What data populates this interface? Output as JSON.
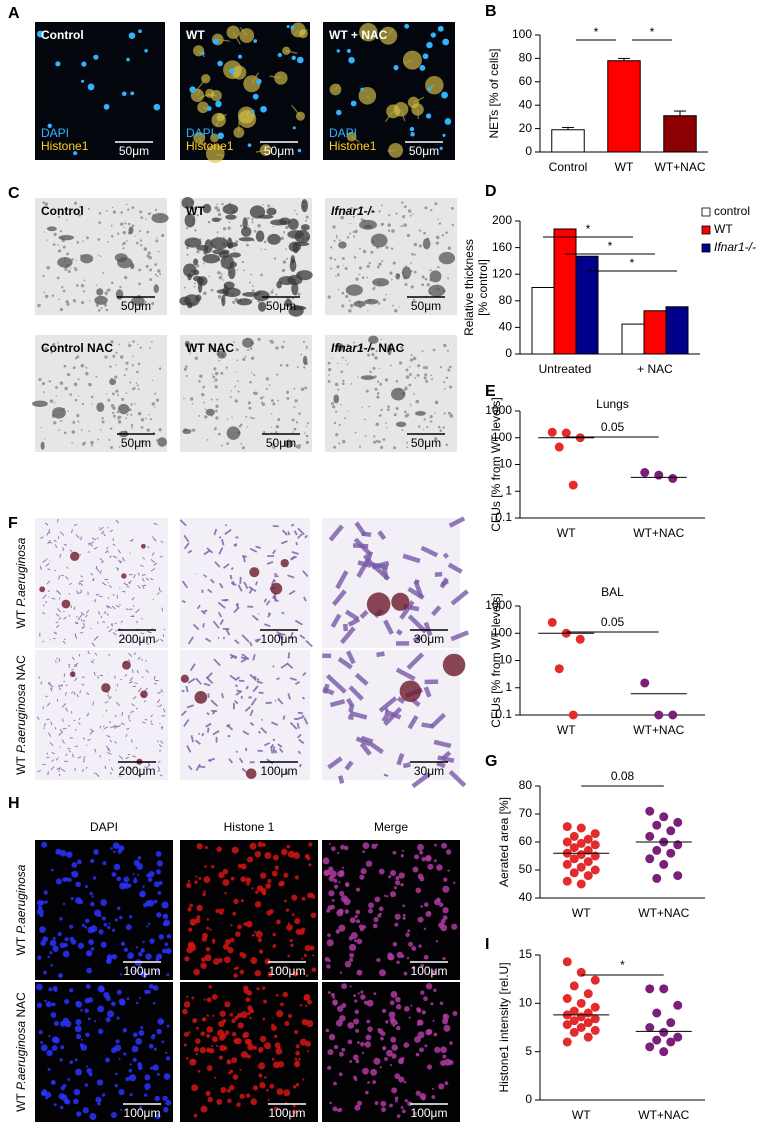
{
  "chart_data": [
    {
      "panel": "B",
      "type": "bar",
      "ylabel": "NETs [% of cells]",
      "categories": [
        "Control",
        "WT",
        "WT+NAC"
      ],
      "values": [
        19,
        78,
        31
      ],
      "errors": [
        2,
        2,
        4
      ],
      "colors": [
        "#ffffff",
        "#ff0000",
        "#8b0000"
      ],
      "ylim": [
        0,
        100
      ],
      "yticks": [
        0,
        20,
        40,
        60,
        80,
        100
      ],
      "comparisons": [
        {
          "between": [
            "Control",
            "WT"
          ],
          "label": "*"
        },
        {
          "between": [
            "WT",
            "WT+NAC"
          ],
          "label": "*"
        }
      ]
    },
    {
      "panel": "D",
      "type": "bar",
      "ylabel": [
        "Relative thickness",
        "[% control]"
      ],
      "categories": [
        "Untreated",
        "+ NAC"
      ],
      "series": [
        {
          "name": "control",
          "color": "#ffffff",
          "values": [
            100,
            45
          ]
        },
        {
          "name": "WT",
          "color": "#ff0000",
          "values": [
            188,
            65
          ]
        },
        {
          "name": "Ifnar1-/-",
          "italic": true,
          "color": "#00008b",
          "values": [
            147,
            71
          ]
        }
      ],
      "ylim": [
        0,
        200
      ],
      "yticks": [
        0,
        40,
        80,
        120,
        160,
        200
      ],
      "legend": "right",
      "comparisons": [
        {
          "series": "control",
          "label": "*"
        },
        {
          "series": "WT",
          "label": "*"
        },
        {
          "series": "Ifnar1-/-",
          "label": "*"
        }
      ]
    },
    {
      "panel": "E",
      "type": "dot",
      "title": "Lungs",
      "ylabel": "CFUs [% from WT levels]",
      "categories": [
        "WT",
        "WT+NAC"
      ],
      "colors": [
        "#e32b2b",
        "#7a1f7a"
      ],
      "points": [
        [
          160,
          150,
          100,
          45,
          1.7
        ],
        [
          5,
          4,
          3
        ]
      ],
      "means": [
        100,
        3.3
      ],
      "log_y": true,
      "ylim": [
        0.1,
        1000
      ],
      "yticks": [
        0.1,
        1,
        10,
        100,
        1000
      ],
      "annotation": "0.05"
    },
    {
      "type": "dot",
      "title": "BAL",
      "ylabel": "CFUs [% from WT levels]",
      "categories": [
        "WT",
        "WT+NAC"
      ],
      "colors": [
        "#e32b2b",
        "#7a1f7a"
      ],
      "points": [
        [
          250,
          100,
          60,
          5,
          0.1
        ],
        [
          1.5,
          0.1,
          0.1
        ]
      ],
      "means": [
        100,
        0.6
      ],
      "log_y": true,
      "ylim": [
        0.1,
        1000
      ],
      "yticks": [
        0.1,
        1,
        10,
        100,
        1000
      ],
      "annotation": "0.05"
    },
    {
      "panel": "G",
      "type": "dot",
      "ylabel": "Aerated area [%]",
      "categories": [
        "WT",
        "WT+NAC"
      ],
      "colors": [
        "#e32b2b",
        "#7a1f7a"
      ],
      "points": [
        [
          65.5,
          65,
          63,
          62,
          61,
          60,
          59.5,
          59,
          58,
          57,
          56,
          55.5,
          55,
          54,
          53,
          52,
          51,
          50,
          49,
          48,
          46,
          45
        ],
        [
          71,
          69,
          67,
          66,
          64,
          62,
          60,
          59,
          57,
          56,
          54,
          52,
          48,
          47
        ]
      ],
      "means": [
        56,
        60
      ],
      "ylim": [
        40,
        80
      ],
      "yticks": [
        40,
        50,
        60,
        70,
        80
      ],
      "annotation": "0.08"
    },
    {
      "panel": "I",
      "type": "dot",
      "ylabel": "Histone1 intensity [rel.U]",
      "categories": [
        "WT",
        "WT+NAC"
      ],
      "colors": [
        "#e32b2b",
        "#7a1f7a"
      ],
      "points": [
        [
          14.3,
          13.2,
          12.4,
          11.8,
          11,
          10.5,
          10,
          9.6,
          9.2,
          9,
          8.8,
          8.6,
          8.4,
          8.2,
          8,
          7.8,
          7.5,
          7.2,
          7,
          6.5,
          6
        ],
        [
          11.5,
          11.5,
          9.8,
          9,
          8,
          7.5,
          7,
          6.5,
          6.2,
          6,
          5.5,
          5
        ]
      ],
      "means": [
        8.8,
        7.1
      ],
      "ylim": [
        0,
        15
      ],
      "yticks": [
        0,
        5,
        10,
        15
      ],
      "annotation": "*"
    }
  ],
  "image_panels": [
    {
      "panel": "A",
      "images": [
        {
          "label": "Control",
          "stains": [
            "DAPI",
            "Histone1"
          ],
          "scale": "50μm"
        },
        {
          "label": "WT",
          "stains": [
            "DAPI",
            "Histone1"
          ],
          "scale": "50μm"
        },
        {
          "label": "WT + NAC",
          "stains": [
            "DAPI",
            "Histone1"
          ],
          "scale": "50μm"
        }
      ]
    },
    {
      "panel": "C",
      "images": [
        {
          "label": "Control",
          "scale": "50μm"
        },
        {
          "label": "WT",
          "scale": "50μm"
        },
        {
          "label": [
            {
              "text": "Ifnar1-/-",
              "italic": true
            }
          ],
          "scale": "50μm"
        },
        {
          "label": "Control NAC",
          "scale": "50μm"
        },
        {
          "label": "WT NAC",
          "scale": "50μm"
        },
        {
          "label": [
            {
              "text": "Ifnar1-/-",
              "italic": true
            },
            {
              "text": " NAC"
            }
          ],
          "scale": "50μm"
        }
      ]
    },
    {
      "panel": "F",
      "rows": [
        {
          "label": [
            {
              "text": "WT "
            },
            {
              "text": "P.aeruginosa",
              "italic": true
            }
          ]
        },
        {
          "label": [
            {
              "text": "WT "
            },
            {
              "text": "P.aeruginosa",
              "italic": true
            },
            {
              "text": " NAC"
            }
          ]
        }
      ],
      "images": [
        {
          "scale": "200μm"
        },
        {
          "scale": "100μm"
        },
        {
          "scale": "30μm"
        },
        {
          "scale": "200μm"
        },
        {
          "scale": "100μm"
        },
        {
          "scale": "30μm"
        }
      ]
    },
    {
      "panel": "H",
      "columns": [
        "DAPI",
        "Histone 1",
        "Merge"
      ],
      "rows": [
        {
          "label": [
            {
              "text": "WT "
            },
            {
              "text": "P.aeruginosa",
              "italic": true
            }
          ]
        },
        {
          "label": [
            {
              "text": "WT "
            },
            {
              "text": "P.aeruginosa",
              "italic": true
            },
            {
              "text": " NAC"
            }
          ]
        }
      ],
      "images": [
        {
          "scale": "100μm"
        },
        {
          "scale": "100μm"
        },
        {
          "scale": "100μm"
        },
        {
          "scale": "100μm"
        },
        {
          "scale": "100μm"
        },
        {
          "scale": "100μm"
        }
      ]
    }
  ]
}
